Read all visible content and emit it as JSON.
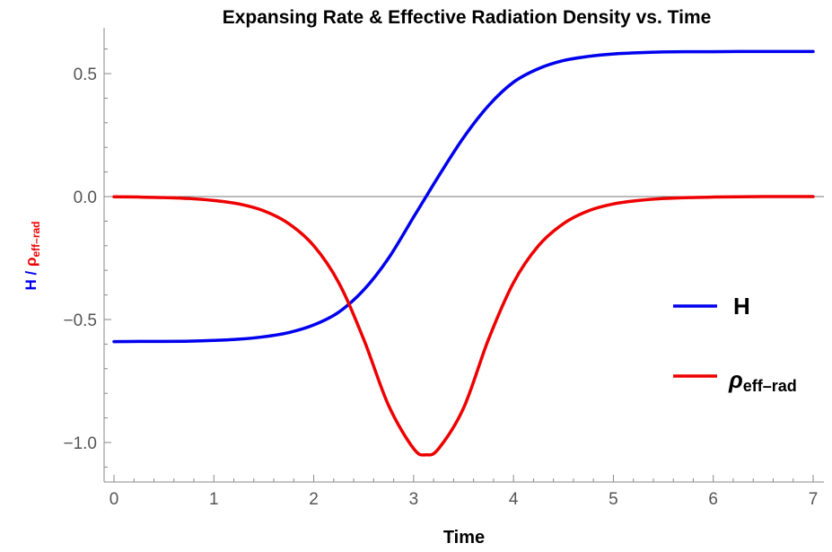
{
  "chart_data": {
    "type": "line",
    "title": "Expansing Rate & Effective Radiation Density vs. Time",
    "xlabel": "Time",
    "ylabel": {
      "h": "H",
      "sep": " / ",
      "rho": "ρ",
      "rho_sub": "eff–rad"
    },
    "xlim": [
      0,
      7
    ],
    "ylim": [
      -1.14,
      0.68
    ],
    "x_ticks": [
      0,
      1,
      2,
      3,
      4,
      5,
      6,
      7
    ],
    "x_tick_labels": [
      "0",
      "1",
      "2",
      "3",
      "4",
      "5",
      "6",
      "7"
    ],
    "y_ticks": [
      0.5,
      0.0,
      -0.5,
      -1.0
    ],
    "y_tick_labels": [
      "0.5",
      "0.0",
      "−0.5",
      "−1.0"
    ],
    "grid": false,
    "zero_line": true,
    "legend_position": "right",
    "series": [
      {
        "name": "H",
        "color": "#0000ee",
        "x": [
          0,
          0.25,
          0.5,
          0.75,
          1,
          1.25,
          1.5,
          1.75,
          2,
          2.25,
          2.5,
          2.75,
          3,
          3.125,
          3.25,
          3.5,
          3.75,
          4,
          4.25,
          4.5,
          4.75,
          5,
          5.25,
          5.5,
          5.75,
          6,
          6.25,
          6.5,
          6.75,
          7
        ],
        "y": [
          -0.59,
          -0.589,
          -0.589,
          -0.588,
          -0.585,
          -0.58,
          -0.57,
          -0.553,
          -0.522,
          -0.47,
          -0.38,
          -0.25,
          -0.083,
          0.0,
          0.083,
          0.24,
          0.37,
          0.465,
          0.52,
          0.553,
          0.57,
          0.58,
          0.585,
          0.588,
          0.589,
          0.589,
          0.59,
          0.59,
          0.59,
          0.59
        ]
      },
      {
        "name": "ρ",
        "name_sub": "eff–rad",
        "color": "#ee0000",
        "x": [
          0,
          0.25,
          0.5,
          0.75,
          1,
          1.25,
          1.5,
          1.75,
          2,
          2.25,
          2.5,
          2.75,
          3,
          3.125,
          3.25,
          3.5,
          3.75,
          4,
          4.25,
          4.5,
          4.75,
          5,
          5.25,
          5.5,
          5.75,
          6,
          6.25,
          6.5,
          6.75,
          7
        ],
        "y": [
          -0.001,
          -0.002,
          -0.004,
          -0.008,
          -0.016,
          -0.03,
          -0.058,
          -0.11,
          -0.2,
          -0.35,
          -0.58,
          -0.85,
          -1.025,
          -1.05,
          -1.025,
          -0.86,
          -0.58,
          -0.35,
          -0.2,
          -0.11,
          -0.058,
          -0.03,
          -0.016,
          -0.008,
          -0.004,
          -0.002,
          -0.001,
          0.0,
          0.0,
          0.0
        ]
      }
    ]
  }
}
